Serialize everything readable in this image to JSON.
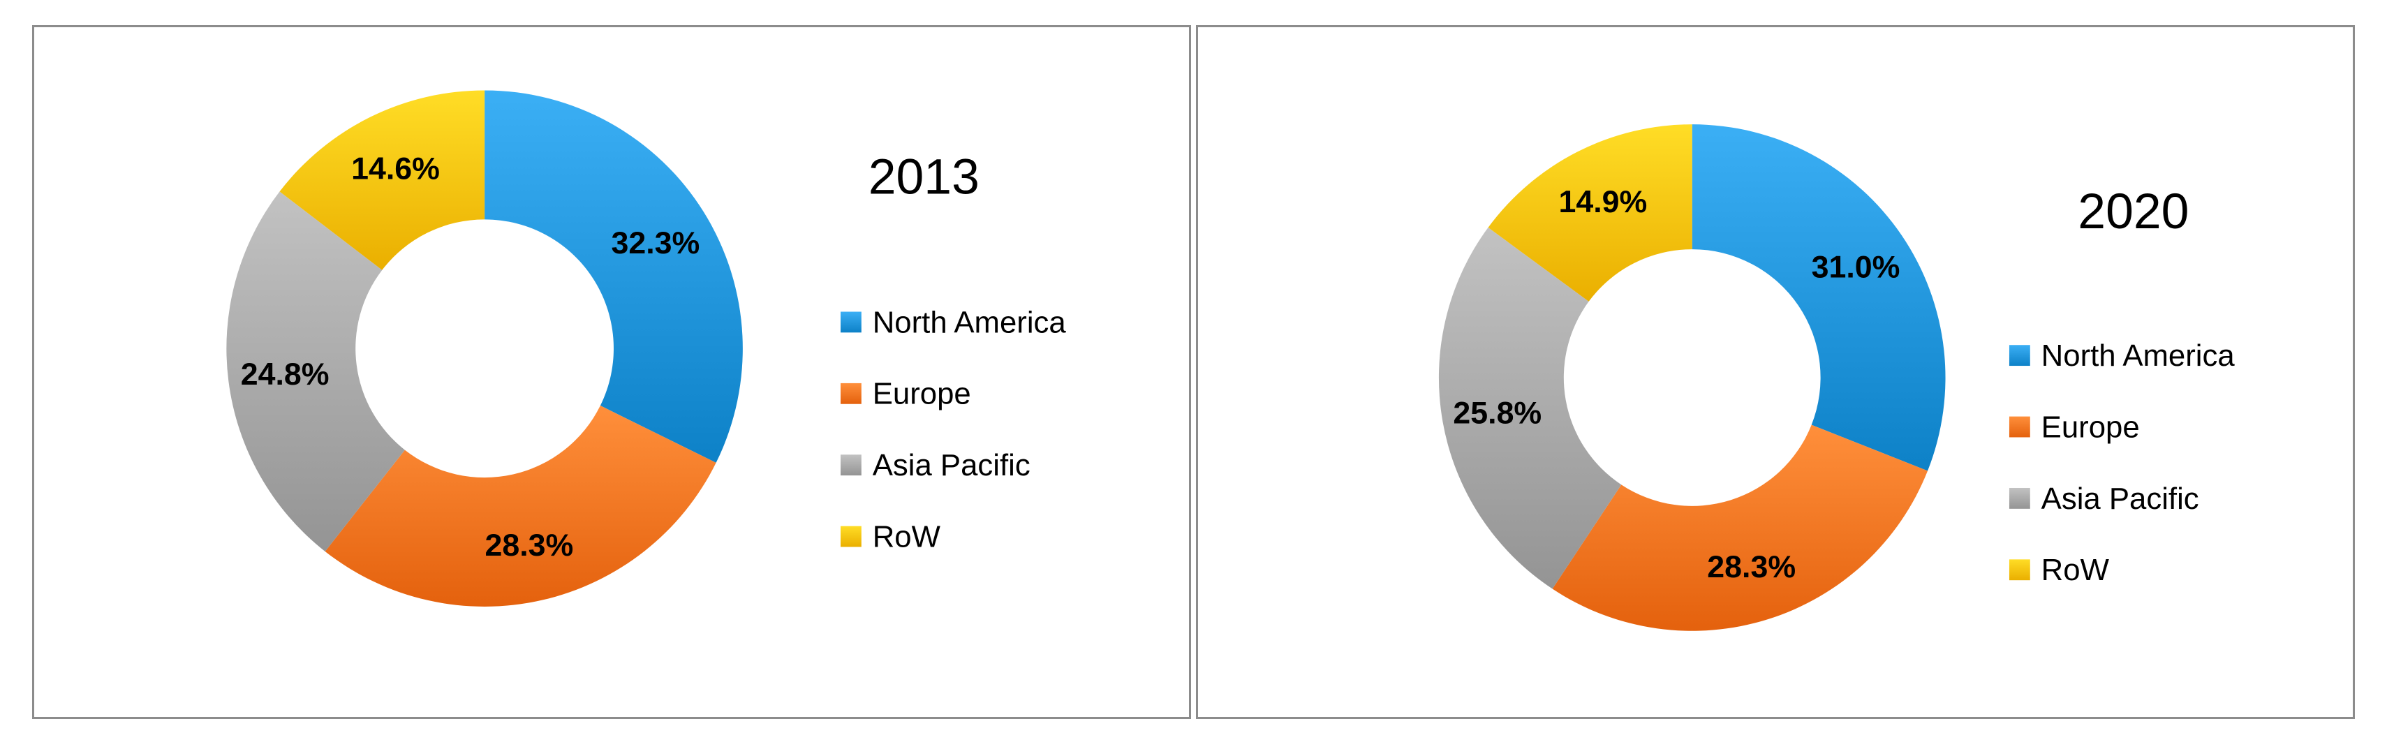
{
  "chart_data": [
    {
      "type": "pie",
      "donut": true,
      "title": "2013",
      "categories": [
        "North America",
        "Europe",
        "Asia Pacific",
        "RoW"
      ],
      "values": [
        32.3,
        28.3,
        24.8,
        14.6
      ],
      "labels": [
        "32.3%",
        "28.3%",
        "24.8%",
        "14.6%"
      ],
      "colors": [
        "#1f93d9",
        "#f6731f",
        "#a6a6a6",
        "#fcc10a"
      ],
      "legend": "right"
    },
    {
      "type": "pie",
      "donut": true,
      "title": "2020",
      "categories": [
        "North America",
        "Europe",
        "Asia Pacific",
        "RoW"
      ],
      "values": [
        31.0,
        28.3,
        25.8,
        14.9
      ],
      "labels": [
        "31.0%",
        "28.3%",
        "25.8%",
        "14.9%"
      ],
      "colors": [
        "#1f93d9",
        "#f6731f",
        "#a6a6a6",
        "#fcc10a"
      ],
      "legend": "right"
    }
  ]
}
